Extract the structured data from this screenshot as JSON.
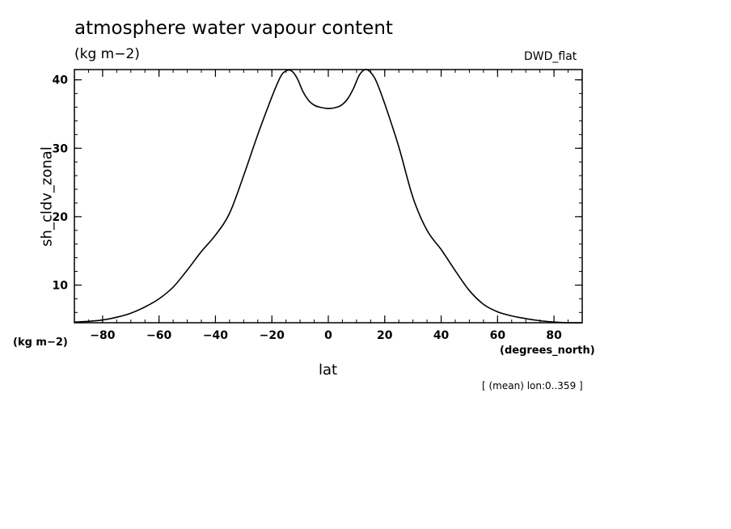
{
  "title": "atmosphere water vapour content",
  "units_label": "(kg m−2)",
  "dataset_label": "DWD_flat",
  "footer_note": "[ (mean) lon:0..359 ]",
  "chart_data": {
    "type": "line",
    "title": "atmosphere water vapour content",
    "xlabel": "lat",
    "x_units": "(degrees_north)",
    "ylabel": "sh_cldv_zonal",
    "y_units": "(kg m−2)",
    "xlim": [
      -90,
      90
    ],
    "ylim": [
      4.5,
      41.5
    ],
    "x_ticks": [
      -80,
      -60,
      -40,
      -20,
      0,
      20,
      40,
      60,
      80
    ],
    "x_tick_labels": [
      "−80",
      "−60",
      "−40",
      "−20",
      "0",
      "20",
      "40",
      "60",
      "80"
    ],
    "y_ticks": [
      10,
      20,
      30,
      40
    ],
    "y_tick_labels": [
      "10",
      "20",
      "30",
      "40"
    ],
    "grid": false,
    "series": [
      {
        "x": [
          -90,
          -85,
          -80,
          -75,
          -70,
          -65,
          -60,
          -55,
          -50,
          -45,
          -40,
          -35,
          -30,
          -25,
          -20,
          -17,
          -15,
          -13,
          -11,
          -9,
          -7,
          -5,
          -3,
          0,
          3,
          5,
          7,
          9,
          11,
          13,
          15,
          17,
          20,
          25,
          30,
          35,
          40,
          45,
          50,
          55,
          60,
          65,
          70,
          75,
          80,
          85,
          90
        ],
        "y": [
          4.6,
          4.7,
          4.9,
          5.3,
          5.9,
          6.8,
          8.0,
          9.7,
          12.2,
          14.9,
          17.3,
          20.5,
          26.0,
          32.0,
          37.5,
          40.4,
          41.3,
          41.3,
          40.2,
          38.3,
          37.0,
          36.3,
          36.0,
          35.8,
          36.0,
          36.4,
          37.3,
          38.8,
          40.7,
          41.5,
          41.1,
          39.8,
          36.5,
          30.2,
          22.8,
          18.0,
          15.2,
          12.1,
          9.2,
          7.2,
          6.1,
          5.5,
          5.1,
          4.8,
          4.6,
          4.5,
          4.5
        ]
      }
    ]
  }
}
